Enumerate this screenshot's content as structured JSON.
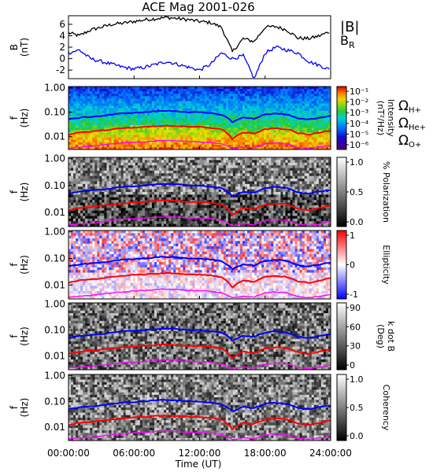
{
  "chart_data": {
    "type": "line",
    "title": "ACE Mag 2001-026",
    "xlabel": "Time (UT)",
    "x_ticks": [
      "00:00:00",
      "06:00:00",
      "12:00:00",
      "18:00:00",
      "24:00:00"
    ],
    "x_range_hours": [
      0,
      24
    ],
    "colors": {
      "b_total": "#000000",
      "b_r": "#0000ff",
      "h_plus": "#0000ff",
      "he_plus": "#ff0000",
      "o_plus": "#ff00ff"
    },
    "panels": [
      {
        "id": "mag",
        "type": "line",
        "ylabel": [
          "B",
          "(nT)"
        ],
        "y_ticks": [
          "6",
          "4",
          "2",
          "0",
          "-2"
        ],
        "y_tick_values": [
          6,
          4,
          2,
          0,
          -2
        ],
        "ylim": [
          -3.5,
          7.5
        ],
        "legend": [
          "|B|",
          "BR"
        ],
        "series": [
          {
            "name": "|B|",
            "x": [
              0,
              1,
              2,
              3,
              4,
              5,
              6,
              7,
              8,
              9,
              10,
              11,
              12,
              13,
              14,
              15,
              16,
              17,
              18,
              19,
              20,
              21,
              22,
              23,
              24
            ],
            "y": [
              4.5,
              4.0,
              5.0,
              5.5,
              6.0,
              6.2,
              6.5,
              6.8,
              7.0,
              7.2,
              7.0,
              6.8,
              6.5,
              6.3,
              5.5,
              1.2,
              3.5,
              3.0,
              5.5,
              5.6,
              5.0,
              3.6,
              3.5,
              4.0,
              4.8
            ]
          },
          {
            "name": "BR",
            "x": [
              0,
              1,
              2,
              3,
              4,
              5,
              6,
              7,
              8,
              9,
              10,
              11,
              12,
              13,
              14,
              15,
              16,
              17,
              18,
              19,
              20,
              21,
              22,
              23,
              24
            ],
            "y": [
              1.0,
              1.5,
              0.0,
              -0.5,
              -1.0,
              -1.5,
              -1.8,
              -1.5,
              -1.0,
              -0.5,
              -1.0,
              -1.5,
              -2.0,
              -1.0,
              1.0,
              0.0,
              0.5,
              -3.5,
              1.0,
              2.0,
              1.5,
              1.0,
              -0.5,
              -1.2,
              -2.0
            ]
          }
        ]
      },
      {
        "id": "intensity",
        "type": "heatmap",
        "ylabel": [
          "f",
          "(Hz)"
        ],
        "y_ticks": [
          "1.00",
          "0.10",
          "0.01"
        ],
        "colorbar_label": [
          "Intensity",
          "(nT²/Hz)"
        ],
        "colorbar_ticks": [
          "10⁻¹",
          "10⁻²",
          "10⁻³",
          "10⁻⁴",
          "10⁻⁵",
          "10⁻⁶"
        ],
        "colormap": "rainbow",
        "side_labels": [
          "ΩH+",
          "ΩHe+",
          "ΩO+"
        ]
      },
      {
        "id": "polarization",
        "type": "heatmap",
        "ylabel": [
          "f",
          "(Hz)"
        ],
        "y_ticks": [
          "1.00",
          "0.10",
          "0.01"
        ],
        "colorbar_label": [
          "% Polarization"
        ],
        "colorbar_ticks": [
          "1.0",
          "0.5",
          "0.0"
        ],
        "colormap": "gray"
      },
      {
        "id": "ellipticity",
        "type": "heatmap",
        "ylabel": [
          "f",
          "(Hz)"
        ],
        "y_ticks": [
          "1.00",
          "0.10",
          "0.01"
        ],
        "colorbar_label": [
          "Ellipticity"
        ],
        "colorbar_ticks": [
          "1",
          "0",
          "-1"
        ],
        "colormap": "blue-white-red"
      },
      {
        "id": "kdotb",
        "type": "heatmap",
        "ylabel": [
          "f",
          "(Hz)"
        ],
        "y_ticks": [
          "1.00",
          "0.10",
          "0.01"
        ],
        "colorbar_label": [
          "k dot B",
          "(Deg)"
        ],
        "colorbar_ticks": [
          "90",
          "60",
          "30",
          "0"
        ],
        "colormap": "gray"
      },
      {
        "id": "coherency",
        "type": "heatmap",
        "ylabel": [
          "f",
          "(Hz)"
        ],
        "y_ticks": [
          "1.00",
          "0.10",
          "0.01"
        ],
        "colorbar_label": [
          "Coherency"
        ],
        "colorbar_ticks": [
          "1.0",
          "0.5",
          "0.0"
        ],
        "colormap": "gray"
      }
    ],
    "gyrofrequency_lines": {
      "x": [
        0,
        1,
        2,
        3,
        4,
        5,
        6,
        7,
        8,
        9,
        10,
        11,
        12,
        13,
        14,
        15,
        16,
        17,
        18,
        19,
        20,
        21,
        22,
        23,
        24
      ],
      "h_plus_hz": [
        0.05,
        0.06,
        0.065,
        0.07,
        0.08,
        0.09,
        0.095,
        0.1,
        0.11,
        0.115,
        0.11,
        0.1,
        0.1,
        0.09,
        0.08,
        0.04,
        0.06,
        0.055,
        0.08,
        0.09,
        0.08,
        0.055,
        0.05,
        0.06,
        0.07
      ],
      "he_plus_hz": [
        0.012,
        0.015,
        0.016,
        0.018,
        0.02,
        0.022,
        0.024,
        0.025,
        0.027,
        0.028,
        0.027,
        0.025,
        0.025,
        0.023,
        0.02,
        0.008,
        0.015,
        0.013,
        0.02,
        0.022,
        0.02,
        0.014,
        0.012,
        0.015,
        0.018
      ],
      "o_plus_hz": [
        0.0035,
        0.0038,
        0.004,
        0.0045,
        0.005,
        0.0055,
        0.006,
        0.0062,
        0.0068,
        0.007,
        0.0068,
        0.0062,
        0.0062,
        0.0058,
        0.005,
        0.0033,
        0.0038,
        0.0035,
        0.005,
        0.0055,
        0.005,
        0.0036,
        0.0033,
        0.0038,
        0.0045
      ]
    }
  }
}
